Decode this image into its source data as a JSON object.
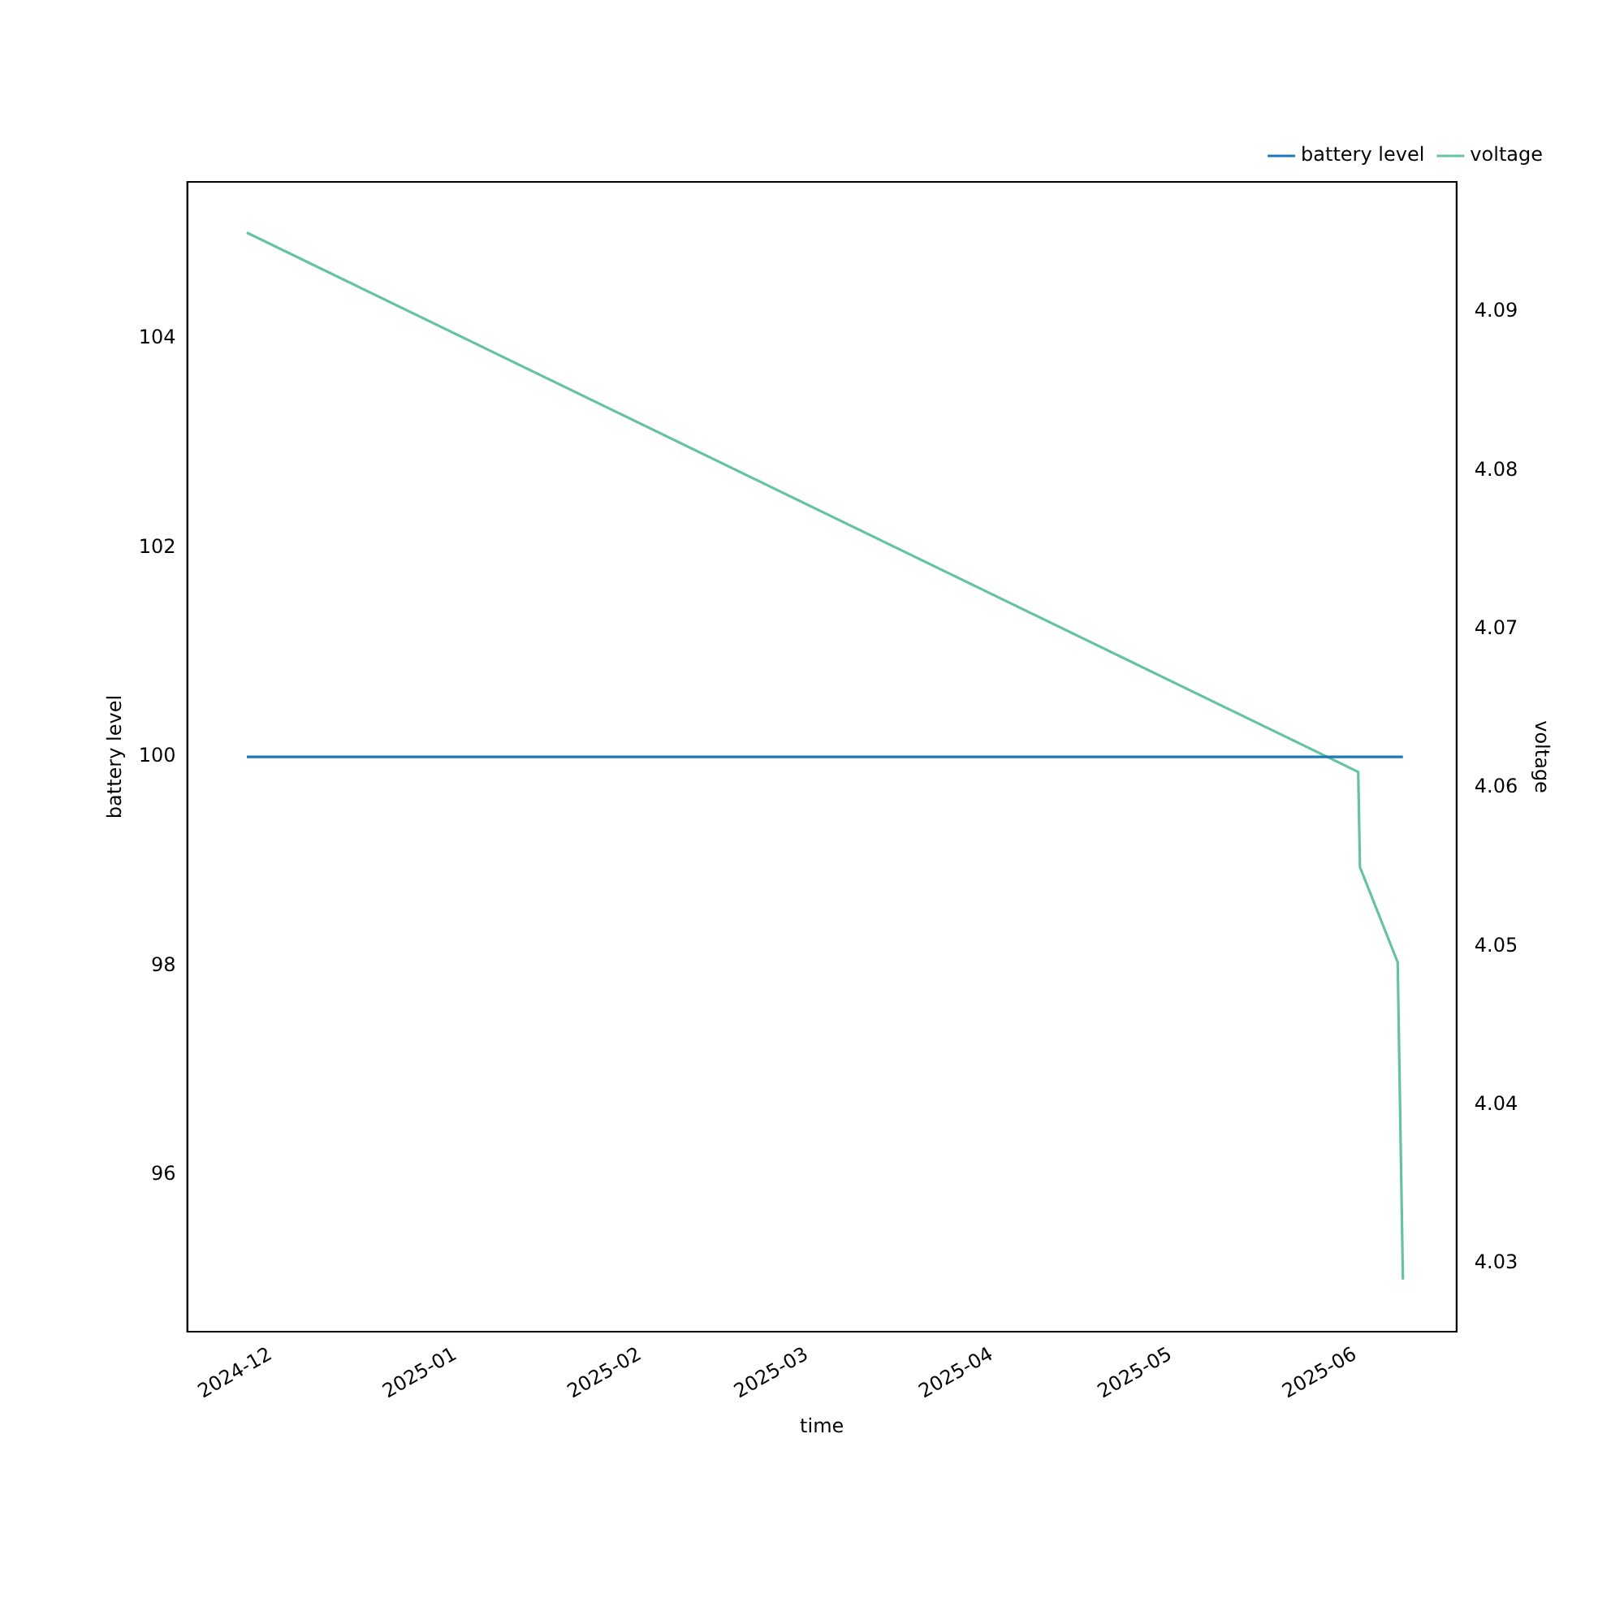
{
  "chart_data": {
    "type": "line",
    "xlabel": "time",
    "ylabel": "battery level",
    "y2label": "voltage",
    "xlim": [
      "2024-11-17",
      "2025-06-18"
    ],
    "xticks": [
      {
        "value": "2024-12-01",
        "label": "2024-12"
      },
      {
        "value": "2025-01-01",
        "label": "2025-01"
      },
      {
        "value": "2025-02-01",
        "label": "2025-02"
      },
      {
        "value": "2025-03-01",
        "label": "2025-03"
      },
      {
        "value": "2025-04-01",
        "label": "2025-04"
      },
      {
        "value": "2025-05-01",
        "label": "2025-05"
      },
      {
        "value": "2025-06-01",
        "label": "2025-06"
      }
    ],
    "ylim": [
      94.5,
      105.5
    ],
    "yticks": [
      96,
      98,
      100,
      102,
      104
    ],
    "y2lim": [
      4.0257,
      4.0982
    ],
    "y2ticks": [
      4.03,
      4.04,
      4.05,
      4.06,
      4.07,
      4.08,
      4.09
    ],
    "series": [
      {
        "name": "battery level",
        "color": "#1f77b4",
        "x": [
          "2024-11-27",
          "2025-06-09"
        ],
        "values": [
          100,
          100
        ]
      },
      {
        "name": "voltage",
        "color": "#66c2a5",
        "axis": "y2",
        "x": [
          "2024-11-27",
          "2025-06-01T12:00",
          "2025-06-01T19:00",
          "2025-06-08T03:00",
          "2025-06-09"
        ],
        "values": [
          4.095,
          4.061,
          4.055,
          4.049,
          4.029
        ]
      }
    ],
    "grid": false,
    "legend": "top right",
    "marker": "none",
    "line_style": "solid"
  }
}
